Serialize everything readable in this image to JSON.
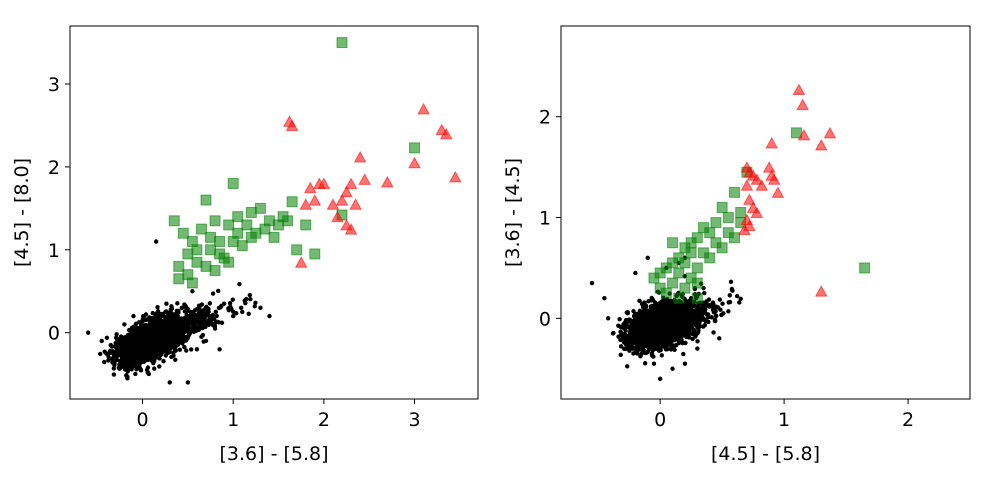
{
  "chart_data": [
    {
      "type": "scatter",
      "title": "",
      "xlabel": "[3.6] - [5.8]",
      "ylabel": "[4.5] - [8.0]",
      "xlim": [
        -0.8,
        3.7
      ],
      "ylim": [
        -0.8,
        3.7
      ],
      "xticks": [
        "0",
        "1",
        "2",
        "3"
      ],
      "yticks": [
        "0",
        "1",
        "2",
        "3"
      ],
      "grid": false,
      "series": [
        {
          "marker": "circle",
          "color": "#000000",
          "opacity": 1,
          "cloud": true,
          "points": [
            [
              -0.6,
              0.0
            ],
            [
              -0.45,
              -0.1
            ],
            [
              -0.4,
              -0.25
            ],
            [
              -0.35,
              -0.15
            ],
            [
              -0.3,
              -0.3
            ],
            [
              -0.25,
              -0.4
            ],
            [
              -0.2,
              0.1
            ],
            [
              -0.15,
              -0.35
            ],
            [
              -0.1,
              0.2
            ],
            [
              0.05,
              -0.45
            ],
            [
              0.3,
              -0.6
            ],
            [
              0.5,
              -0.6
            ],
            [
              0.6,
              -0.2
            ],
            [
              0.7,
              -0.1
            ],
            [
              0.8,
              0.05
            ],
            [
              0.9,
              0.35
            ],
            [
              1.0,
              0.2
            ],
            [
              1.1,
              0.25
            ],
            [
              1.3,
              0.3
            ],
            [
              1.4,
              0.2
            ],
            [
              0.55,
              0.5
            ],
            [
              0.7,
              0.3
            ],
            [
              0.15,
              1.1
            ],
            [
              0.65,
              -0.05
            ],
            [
              0.85,
              -0.2
            ]
          ]
        },
        {
          "marker": "square",
          "color": "#008000",
          "opacity": 0.55,
          "cloud": false,
          "points": [
            [
              2.2,
              3.5
            ],
            [
              0.35,
              1.35
            ],
            [
              0.45,
              1.2
            ],
            [
              0.5,
              0.95
            ],
            [
              0.55,
              1.1
            ],
            [
              0.6,
              0.85
            ],
            [
              0.65,
              1.25
            ],
            [
              0.7,
              1.6
            ],
            [
              0.75,
              1.0
            ],
            [
              0.8,
              1.35
            ],
            [
              0.85,
              1.1
            ],
            [
              0.9,
              0.9
            ],
            [
              0.95,
              1.3
            ],
            [
              1.0,
              1.8
            ],
            [
              1.05,
              1.4
            ],
            [
              1.1,
              1.05
            ],
            [
              1.15,
              1.3
            ],
            [
              1.2,
              1.45
            ],
            [
              1.25,
              1.2
            ],
            [
              1.3,
              1.5
            ],
            [
              1.35,
              1.25
            ],
            [
              1.4,
              1.35
            ],
            [
              1.45,
              1.15
            ],
            [
              1.5,
              1.3
            ],
            [
              1.55,
              1.4
            ],
            [
              1.6,
              1.35
            ],
            [
              1.65,
              1.58
            ],
            [
              1.7,
              1.0
            ],
            [
              1.8,
              1.3
            ],
            [
              1.9,
              0.95
            ],
            [
              2.2,
              1.42
            ],
            [
              3.0,
              2.23
            ],
            [
              0.4,
              0.8
            ],
            [
              0.5,
              0.7
            ],
            [
              0.6,
              1.0
            ],
            [
              0.7,
              0.8
            ],
            [
              0.8,
              0.75
            ],
            [
              0.95,
              0.85
            ],
            [
              1.0,
              1.1
            ],
            [
              0.4,
              0.65
            ],
            [
              0.55,
              0.6
            ],
            [
              0.75,
              1.15
            ],
            [
              0.85,
              0.95
            ],
            [
              1.05,
              1.2
            ],
            [
              1.2,
              1.15
            ]
          ]
        },
        {
          "marker": "triangle",
          "color": "#ff0000",
          "opacity": 0.55,
          "cloud": false,
          "points": [
            [
              1.62,
              2.55
            ],
            [
              1.65,
              2.5
            ],
            [
              1.75,
              0.85
            ],
            [
              1.8,
              1.55
            ],
            [
              1.85,
              1.75
            ],
            [
              1.9,
              1.6
            ],
            [
              1.95,
              1.8
            ],
            [
              2.0,
              1.8
            ],
            [
              2.1,
              1.55
            ],
            [
              2.15,
              1.4
            ],
            [
              2.2,
              1.6
            ],
            [
              2.25,
              1.7
            ],
            [
              2.3,
              1.8
            ],
            [
              2.3,
              1.25
            ],
            [
              2.35,
              1.55
            ],
            [
              2.4,
              2.12
            ],
            [
              2.45,
              1.85
            ],
            [
              2.7,
              1.82
            ],
            [
              3.0,
              2.05
            ],
            [
              3.1,
              2.7
            ],
            [
              3.3,
              2.45
            ],
            [
              3.35,
              2.4
            ],
            [
              3.45,
              1.88
            ],
            [
              2.25,
              1.3
            ]
          ]
        }
      ]
    },
    {
      "type": "scatter",
      "title": "",
      "xlabel": "[4.5] - [5.8]",
      "ylabel": "[3.6] - [4.5]",
      "xlim": [
        -0.8,
        2.5
      ],
      "ylim": [
        -0.8,
        2.9
      ],
      "xticks": [
        "0",
        "1",
        "2"
      ],
      "yticks": [
        "0",
        "1",
        "2"
      ],
      "grid": false,
      "series": [
        {
          "marker": "circle",
          "color": "#000000",
          "opacity": 1,
          "cloud": true,
          "points": [
            [
              -0.55,
              0.35
            ],
            [
              -0.45,
              0.2
            ],
            [
              -0.42,
              0.0
            ],
            [
              -0.38,
              -0.15
            ],
            [
              -0.3,
              -0.2
            ],
            [
              -0.25,
              -0.3
            ],
            [
              -0.2,
              0.45
            ],
            [
              -0.15,
              -0.35
            ],
            [
              -0.1,
              0.6
            ],
            [
              0.0,
              -0.6
            ],
            [
              0.1,
              -0.5
            ],
            [
              0.15,
              0.55
            ],
            [
              0.2,
              -0.45
            ],
            [
              0.25,
              0.2
            ],
            [
              0.3,
              -0.3
            ],
            [
              0.35,
              0.3
            ],
            [
              0.2,
              0.6
            ],
            [
              0.05,
              0.5
            ],
            [
              0.3,
              -0.15
            ],
            [
              -0.05,
              -0.45
            ]
          ]
        },
        {
          "marker": "square",
          "color": "#008000",
          "opacity": 0.55,
          "cloud": false,
          "points": [
            [
              1.1,
              1.84
            ],
            [
              1.65,
              0.5
            ],
            [
              0.6,
              1.25
            ],
            [
              0.7,
              1.45
            ],
            [
              0.65,
              1.05
            ],
            [
              0.55,
              1.0
            ],
            [
              0.5,
              1.1
            ],
            [
              0.45,
              0.95
            ],
            [
              0.4,
              0.85
            ],
            [
              0.35,
              0.9
            ],
            [
              0.3,
              0.8
            ],
            [
              0.25,
              0.75
            ],
            [
              0.2,
              0.7
            ],
            [
              0.15,
              0.6
            ],
            [
              0.1,
              0.55
            ],
            [
              0.05,
              0.5
            ],
            [
              0.0,
              0.45
            ],
            [
              -0.05,
              0.4
            ],
            [
              0.3,
              0.5
            ],
            [
              0.35,
              0.65
            ],
            [
              0.4,
              0.6
            ],
            [
              0.45,
              0.75
            ],
            [
              0.6,
              0.8
            ],
            [
              0.65,
              0.95
            ],
            [
              0.15,
              0.45
            ],
            [
              0.2,
              0.3
            ],
            [
              0.25,
              0.4
            ],
            [
              0.3,
              0.2
            ],
            [
              0.1,
              0.35
            ],
            [
              0.05,
              0.25
            ],
            [
              0.2,
              0.55
            ],
            [
              0.25,
              0.65
            ],
            [
              0.3,
              0.35
            ],
            [
              0.5,
              0.7
            ],
            [
              0.55,
              0.85
            ],
            [
              0.1,
              0.75
            ],
            [
              0.0,
              0.3
            ],
            [
              0.15,
              0.2
            ]
          ]
        },
        {
          "marker": "triangle",
          "color": "#ff0000",
          "opacity": 0.55,
          "cloud": false,
          "points": [
            [
              1.12,
              2.27
            ],
            [
              1.15,
              2.12
            ],
            [
              1.16,
              1.82
            ],
            [
              1.3,
              1.72
            ],
            [
              1.37,
              1.84
            ],
            [
              0.9,
              1.74
            ],
            [
              0.7,
              1.5
            ],
            [
              0.72,
              1.45
            ],
            [
              0.75,
              1.42
            ],
            [
              0.78,
              1.38
            ],
            [
              0.82,
              1.32
            ],
            [
              0.88,
              1.5
            ],
            [
              0.9,
              1.42
            ],
            [
              0.92,
              1.38
            ],
            [
              0.95,
              1.25
            ],
            [
              0.7,
              1.32
            ],
            [
              0.72,
              1.18
            ],
            [
              0.75,
              1.1
            ],
            [
              0.78,
              1.05
            ],
            [
              0.7,
              0.98
            ],
            [
              0.72,
              0.92
            ],
            [
              0.68,
              0.88
            ],
            [
              1.3,
              0.27
            ]
          ]
        }
      ]
    }
  ]
}
